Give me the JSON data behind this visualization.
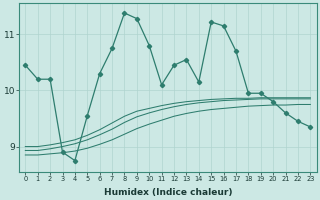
{
  "xlabel": "Humidex (Indice chaleur)",
  "background_color": "#cce8e4",
  "line_color": "#2e7d6e",
  "grid_color": "#b0d4cf",
  "x_min": 0,
  "x_max": 23,
  "y_min": 8.55,
  "y_max": 11.55,
  "yticks": [
    9,
    10,
    11
  ],
  "xticks": [
    0,
    1,
    2,
    3,
    4,
    5,
    6,
    7,
    8,
    9,
    10,
    11,
    12,
    13,
    14,
    15,
    16,
    17,
    18,
    19,
    20,
    21,
    22,
    23
  ],
  "main_line_x": [
    0,
    1,
    2,
    3,
    4,
    5,
    6,
    7,
    8,
    9,
    10,
    11,
    12,
    13,
    14,
    15,
    16,
    17,
    18,
    19,
    20,
    21,
    22,
    23
  ],
  "main_line_y": [
    10.45,
    10.2,
    10.2,
    8.9,
    8.75,
    9.55,
    10.3,
    10.75,
    11.38,
    11.28,
    10.8,
    10.1,
    10.45,
    10.55,
    10.15,
    11.22,
    11.15,
    10.7,
    9.95,
    9.95,
    9.8,
    9.6,
    9.45,
    9.35
  ],
  "band_line1_y": [
    8.85,
    8.85,
    8.87,
    8.89,
    8.92,
    8.97,
    9.04,
    9.12,
    9.22,
    9.32,
    9.4,
    9.47,
    9.54,
    9.59,
    9.63,
    9.66,
    9.68,
    9.7,
    9.72,
    9.73,
    9.74,
    9.74,
    9.75,
    9.75
  ],
  "band_line2_y": [
    8.93,
    8.93,
    8.96,
    9.0,
    9.05,
    9.12,
    9.21,
    9.31,
    9.43,
    9.53,
    9.6,
    9.66,
    9.71,
    9.75,
    9.78,
    9.8,
    9.82,
    9.83,
    9.84,
    9.85,
    9.85,
    9.85,
    9.85,
    9.85
  ],
  "band_line3_y": [
    9.0,
    9.0,
    9.03,
    9.07,
    9.12,
    9.2,
    9.3,
    9.42,
    9.54,
    9.63,
    9.68,
    9.73,
    9.77,
    9.8,
    9.82,
    9.84,
    9.85,
    9.86,
    9.86,
    9.87,
    9.87,
    9.87,
    9.87,
    9.87
  ]
}
